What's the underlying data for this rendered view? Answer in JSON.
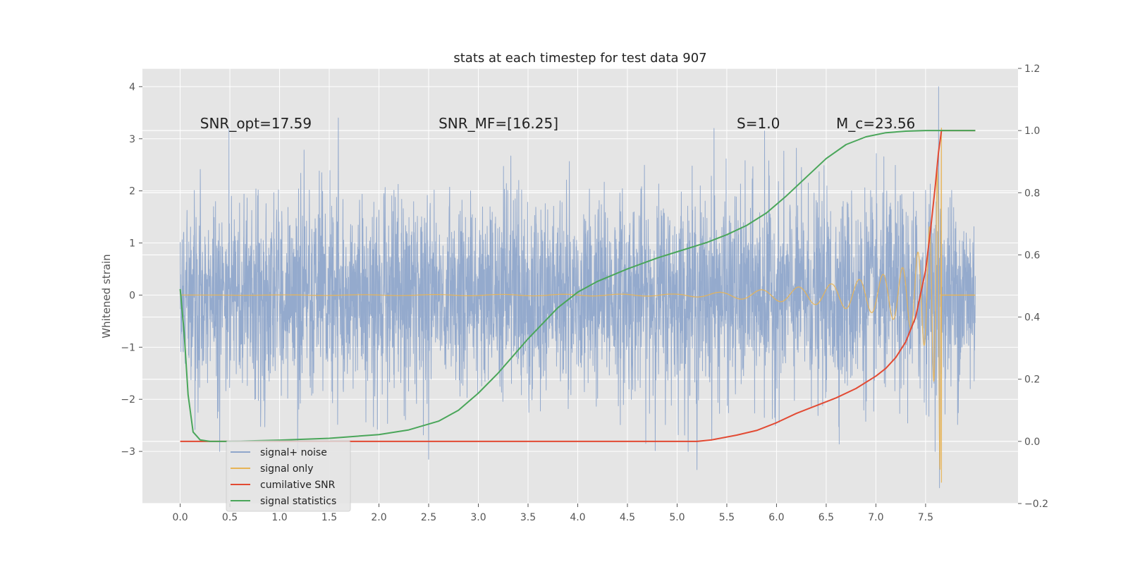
{
  "chart_data": {
    "type": "line",
    "title": "stats at each timestep for test data 907",
    "ylabel": "Whitened strain",
    "xlabel": "",
    "xlim": [
      -0.38,
      8.43
    ],
    "ylim": [
      -4.0,
      4.35
    ],
    "y2lim": [
      -0.2,
      1.2
    ],
    "x_ticks": [
      0.0,
      0.5,
      1.0,
      1.5,
      2.0,
      2.5,
      3.0,
      3.5,
      4.0,
      4.5,
      5.0,
      5.5,
      6.0,
      6.5,
      7.0,
      7.5
    ],
    "y_ticks": [
      -3,
      -2,
      -1,
      0,
      1,
      2,
      3,
      4
    ],
    "y2_ticks": [
      -0.2,
      0.0,
      0.2,
      0.4,
      0.6,
      0.8,
      1.0,
      1.2
    ],
    "x_tick_labels": [
      "0.0",
      "0.5",
      "1.0",
      "1.5",
      "2.0",
      "2.5",
      "3.0",
      "3.5",
      "4.0",
      "4.5",
      "5.0",
      "5.5",
      "6.0",
      "6.5",
      "7.0",
      "7.5"
    ],
    "y_tick_labels": [
      "−3",
      "−2",
      "−1",
      "0",
      "1",
      "2",
      "3",
      "4"
    ],
    "y2_tick_labels": [
      "−0.2",
      "0.0",
      "0.2",
      "0.4",
      "0.6",
      "0.8",
      "1.0",
      "1.2"
    ],
    "grid": true,
    "legend_placement": "lower-left",
    "annotations": [
      {
        "text": "SNR_opt=17.59",
        "x": 0.2,
        "y": 3.2
      },
      {
        "text": "SNR_MF=[16.25]",
        "x": 2.6,
        "y": 3.2
      },
      {
        "text": "S=1.0",
        "x": 5.6,
        "y": 3.2
      },
      {
        "text": "M_c=23.56",
        "x": 6.6,
        "y": 3.2
      }
    ],
    "series": [
      {
        "name": "signal+ noise",
        "axis": "left",
        "color": "#8fa6cb",
        "kind": "noise",
        "x_range": [
          0.0,
          8.0
        ],
        "envelope_y": [
          -3.7,
          4.0
        ],
        "spike_points": [
          [
            0.49,
            3.2
          ],
          [
            1.59,
            3.4
          ],
          [
            5.37,
            3.2
          ],
          [
            5.88,
            3.15
          ],
          [
            7.63,
            4.0
          ],
          [
            7.64,
            -3.7
          ],
          [
            2.5,
            -3.15
          ],
          [
            5.2,
            -3.35
          ]
        ]
      },
      {
        "name": "signal only",
        "axis": "left",
        "color": "#e7b456",
        "kind": "chirp",
        "x_range": [
          0.0,
          7.66
        ],
        "amplitude": [
          [
            0.0,
            0.0
          ],
          [
            5.0,
            0.02
          ],
          [
            5.5,
            0.06
          ],
          [
            6.0,
            0.12
          ],
          [
            6.5,
            0.2
          ],
          [
            7.0,
            0.35
          ],
          [
            7.3,
            0.55
          ],
          [
            7.5,
            1.0
          ],
          [
            7.6,
            1.8
          ],
          [
            7.65,
            3.6
          ]
        ]
      },
      {
        "name": "cumilative SNR",
        "axis": "right",
        "color": "#e24a33",
        "x": [
          0.0,
          5.2,
          5.35,
          5.6,
          5.8,
          6.0,
          6.2,
          6.4,
          6.6,
          6.8,
          7.0,
          7.1,
          7.2,
          7.3,
          7.4,
          7.5,
          7.55,
          7.6,
          7.63,
          7.66,
          7.8,
          8.0
        ],
        "y": [
          0.0,
          0.0,
          0.005,
          0.02,
          0.035,
          0.06,
          0.09,
          0.115,
          0.14,
          0.17,
          0.21,
          0.235,
          0.27,
          0.32,
          0.4,
          0.55,
          0.68,
          0.83,
          0.93,
          1.0,
          1.0,
          1.0
        ]
      },
      {
        "name": "signal statistics",
        "axis": "right",
        "color": "#4aa65a",
        "x": [
          0.0,
          0.04,
          0.08,
          0.13,
          0.2,
          0.3,
          0.5,
          1.0,
          1.5,
          2.0,
          2.3,
          2.6,
          2.8,
          3.0,
          3.2,
          3.5,
          3.8,
          4.0,
          4.2,
          4.5,
          4.8,
          5.0,
          5.3,
          5.5,
          5.7,
          5.9,
          6.1,
          6.3,
          6.5,
          6.7,
          6.9,
          7.1,
          7.3,
          7.5,
          7.7,
          8.0
        ],
        "y": [
          0.49,
          0.35,
          0.15,
          0.03,
          0.005,
          0.0,
          0.0,
          0.004,
          0.01,
          0.022,
          0.037,
          0.065,
          0.1,
          0.155,
          0.22,
          0.33,
          0.43,
          0.48,
          0.515,
          0.555,
          0.59,
          0.61,
          0.64,
          0.665,
          0.695,
          0.735,
          0.79,
          0.85,
          0.91,
          0.955,
          0.98,
          0.993,
          0.998,
          1.0,
          1.0,
          1.0
        ]
      }
    ]
  }
}
